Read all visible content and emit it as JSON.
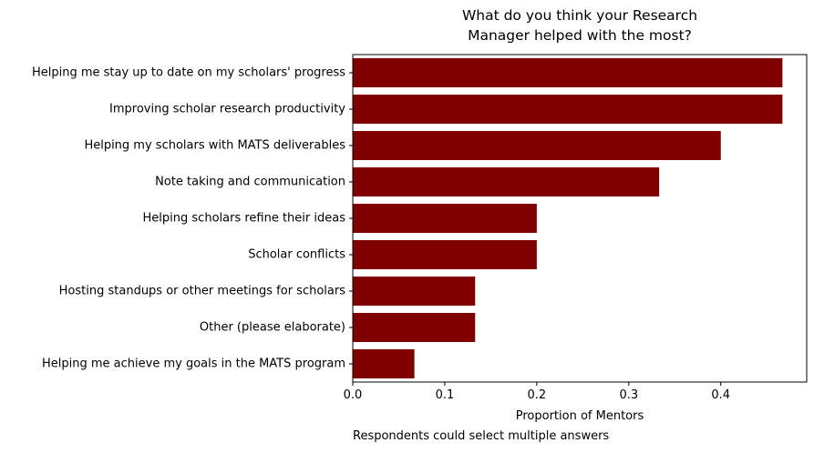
{
  "chart_data": {
    "type": "bar",
    "orientation": "horizontal",
    "title_lines": [
      "What do you think your Research",
      "Manager helped with the most?"
    ],
    "xlabel": "Proportion of Mentors",
    "ylabel": "",
    "footnote": "Respondents could select multiple answers",
    "xlim": [
      0,
      0.4934
    ],
    "xticks": [
      0.0,
      0.1,
      0.2,
      0.3,
      0.4
    ],
    "xtick_labels": [
      "0.0",
      "0.1",
      "0.2",
      "0.3",
      "0.4"
    ],
    "grid": false,
    "bar_color": "#800000",
    "categories": [
      "Helping me stay up to date on my scholars' progress",
      "Improving scholar research productivity",
      "Helping my scholars with MATS deliverables",
      "Note taking and communication",
      "Helping scholars refine their ideas",
      "Scholar conflicts",
      "Hosting standups or other meetings for scholars",
      "Other (please elaborate)",
      "Helping me achieve my goals in the MATS program"
    ],
    "values": [
      0.467,
      0.467,
      0.4,
      0.333,
      0.2,
      0.2,
      0.133,
      0.133,
      0.067
    ]
  }
}
